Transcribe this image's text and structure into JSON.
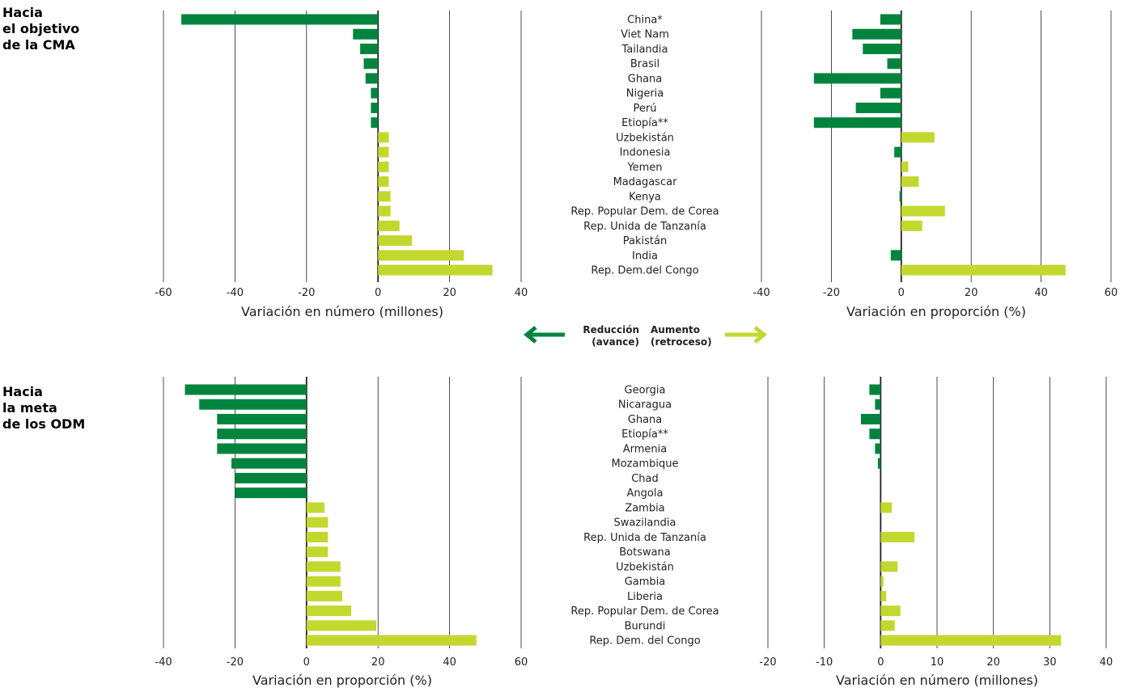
{
  "sections": [
    {
      "title_lines": [
        "Hacia",
        "el objetivo",
        "de la CMA"
      ]
    },
    {
      "title_lines": [
        "Hacia",
        "la meta",
        "de los ODM"
      ]
    }
  ],
  "legend": {
    "decrease_line1": "Reducción",
    "decrease_line2": "(avance)",
    "increase_line1": "Aumento",
    "increase_line2": "(retroceso)"
  },
  "colors": {
    "decrease": "#00843d",
    "increase": "#c3d82f",
    "grid": "#231f20"
  },
  "chart_data": [
    {
      "type": "bar",
      "orientation": "horizontal",
      "xlabel": "Variación en número (millones)",
      "xlim": [
        -60,
        40
      ],
      "xticks": [
        -60,
        -40,
        -20,
        0,
        20,
        40
      ],
      "categories": [
        "China*",
        "Viet Nam",
        "Tailandia",
        "Brasil",
        "Ghana",
        "Nigeria",
        "Perú",
        "Etiopía**",
        "Uzbekistán",
        "Indonesia",
        "Yemen",
        "Madagascar",
        "Kenya",
        "Rep. Popular Dem. de Corea",
        "Rep. Unida de Tanzanía",
        "Pakistán",
        "India",
        "Rep. Dem.del Congo"
      ],
      "values": [
        -55,
        -7,
        -5,
        -4,
        -3.5,
        -2,
        -2,
        -2,
        3,
        3,
        3,
        3,
        3.5,
        3.5,
        6,
        9.5,
        24,
        32
      ]
    },
    {
      "type": "bar",
      "orientation": "horizontal",
      "xlabel": "Variación en proporción (%)",
      "xlim": [
        -40,
        60
      ],
      "xticks": [
        -40,
        -20,
        0,
        20,
        40,
        60
      ],
      "categories": [
        "China*",
        "Viet Nam",
        "Tailandia",
        "Brasil",
        "Ghana",
        "Nigeria",
        "Perú",
        "Etiopía**",
        "Uzbekistán",
        "Indonesia",
        "Yemen",
        "Madagascar",
        "Kenya",
        "Rep. Popular Dem. de Corea",
        "Rep. Unida de Tanzanía",
        "Pakistán",
        "India",
        "Rep. Dem.del Congo"
      ],
      "values": [
        -6,
        -14,
        -11,
        -4,
        -25,
        -6,
        -13,
        -25,
        9.5,
        -2,
        2,
        5,
        -0.5,
        12.5,
        6,
        0,
        -3,
        47
      ]
    },
    {
      "type": "bar",
      "orientation": "horizontal",
      "xlabel": "Variación en proporción (%)",
      "xlim": [
        -40,
        60
      ],
      "xticks": [
        -40,
        -20,
        0,
        20,
        40,
        60
      ],
      "values": [
        -34,
        -30,
        -25,
        -25,
        -25,
        -21,
        -20,
        -20,
        5,
        6,
        6,
        6,
        9.5,
        9.5,
        10,
        12.5,
        19.5,
        47.5
      ]
    },
    {
      "type": "bar",
      "orientation": "horizontal",
      "xlabel": "Variación en número (millones)",
      "xlim": [
        -20,
        40
      ],
      "xticks": [
        -20,
        -10,
        0,
        10,
        20,
        30,
        40
      ],
      "categories": [
        "Georgia",
        "Nicaragua",
        "Ghana",
        "Etiopía**",
        "Armenia",
        "Mozambique",
        "Chad",
        "Angola",
        "Zambia",
        "Swazilandia",
        "Rep. Unida de Tanzanía",
        "Botswana",
        "Uzbekistán",
        "Gambia",
        "Liberia",
        "Rep. Popular Dem. de Corea",
        "Burundi",
        "Rep. Dem. del Congo"
      ],
      "values": [
        -2,
        -1,
        -3.5,
        -2,
        -1,
        -0.5,
        0,
        0,
        2,
        0,
        6,
        0,
        3,
        0.5,
        1,
        3.5,
        2.5,
        32
      ]
    }
  ]
}
